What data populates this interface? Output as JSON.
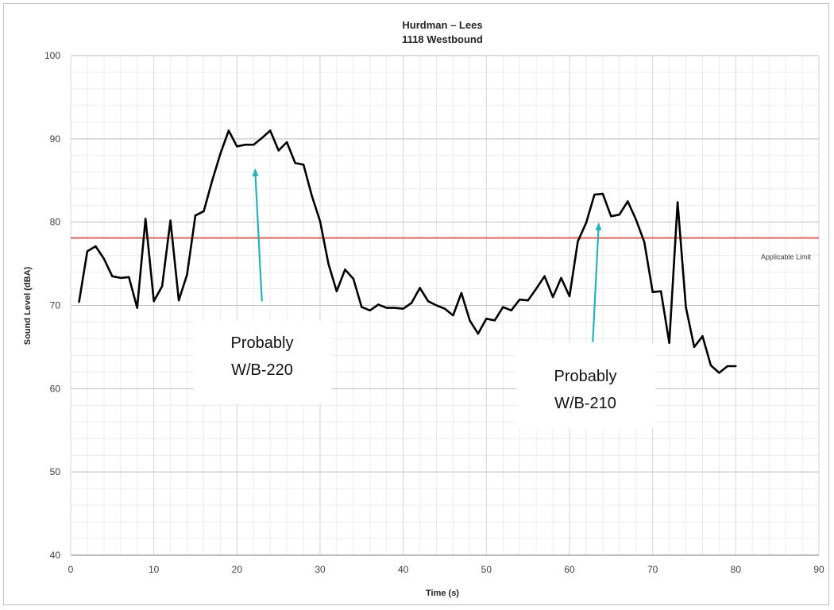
{
  "chart_data": {
    "type": "line",
    "title": "Hurdman – Lees",
    "subtitle": "1118 Westbound",
    "xlabel": "Time (s)",
    "ylabel": "Sound Level (dBA)",
    "xlim": [
      0,
      90
    ],
    "ylim": [
      40,
      100
    ],
    "x_ticks": [
      "0",
      "10",
      "20",
      "30",
      "40",
      "50",
      "60",
      "70",
      "80",
      "90"
    ],
    "y_ticks": [
      "40",
      "50",
      "60",
      "70",
      "80",
      "90",
      "100"
    ],
    "grid": true,
    "series": [
      {
        "color": "#000000",
        "x": [
          1,
          2,
          3,
          4,
          5,
          6,
          7,
          8,
          9,
          10,
          11,
          12,
          13,
          14,
          15,
          16,
          17,
          18,
          19,
          20,
          21,
          22,
          23,
          24,
          25,
          26,
          27,
          28,
          29,
          30,
          31,
          32,
          33,
          34,
          35,
          36,
          37,
          38,
          39,
          40,
          41,
          42,
          43,
          44,
          45,
          46,
          47,
          48,
          49,
          50,
          51,
          52,
          53,
          54,
          55,
          56,
          57,
          58,
          59,
          60,
          61,
          62,
          63,
          64,
          65,
          66,
          67,
          68,
          69,
          70,
          71,
          72,
          73,
          74,
          75,
          76,
          77,
          78,
          79,
          80
        ],
        "y": [
          70.4,
          76.5,
          77.1,
          75.6,
          73.5,
          73.3,
          73.4,
          69.7,
          80.4,
          70.5,
          72.3,
          80.2,
          70.6,
          73.7,
          80.8,
          81.3,
          84.9,
          88.2,
          91.0,
          89.1,
          89.3,
          89.3,
          90.1,
          91.0,
          88.6,
          89.6,
          87.1,
          86.9,
          83.2,
          80.1,
          75.0,
          71.7,
          74.3,
          73.2,
          69.8,
          69.4,
          70.1,
          69.7,
          69.7,
          69.6,
          70.3,
          72.1,
          70.5,
          70.0,
          69.6,
          68.8,
          71.5,
          68.2,
          66.6,
          68.4,
          68.2,
          69.8,
          69.4,
          70.7,
          70.6,
          72.0,
          73.5,
          71.0,
          73.3,
          71.1,
          77.7,
          79.9,
          83.3,
          83.4,
          80.7,
          80.9,
          82.5,
          80.3,
          77.6,
          71.6,
          71.7,
          65.5,
          82.4,
          69.8,
          65.0,
          66.3,
          62.8,
          61.9,
          62.7,
          62.7
        ]
      }
    ],
    "reference_line": {
      "y": 78.1,
      "label": "Applicable Limit",
      "color": "#e06060"
    },
    "annotations": [
      {
        "text_lines": [
          "Probably",
          "W/B-220"
        ],
        "arrow_from": [
          23,
          70.5
        ],
        "arrow_to": [
          22.2,
          86.0
        ],
        "color": "#2ab0b8"
      },
      {
        "text_lines": [
          "Probably",
          "W/B-210"
        ],
        "arrow_from": [
          62.8,
          65.6
        ],
        "arrow_to": [
          63.5,
          79.5
        ],
        "color": "#2ab0b8"
      }
    ]
  }
}
